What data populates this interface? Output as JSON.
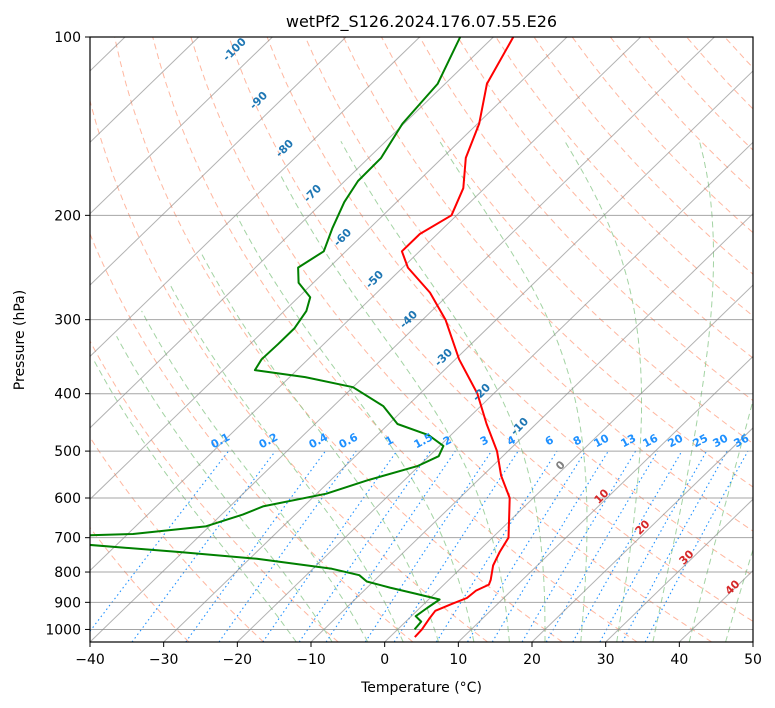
{
  "chart_data": {
    "type": "line",
    "title": "wetPf2_S126.2024.176.07.55.E26",
    "xlabel": "Temperature (°C)",
    "ylabel": "Pressure (hPa)",
    "xlim": [
      -40,
      50
    ],
    "ylim": [
      1050,
      100
    ],
    "y_scale": "log",
    "skew": true,
    "x_ticks": [
      -40,
      -30,
      -20,
      -10,
      0,
      10,
      20,
      30,
      40,
      50
    ],
    "x_tick_labels": [
      "−40",
      "−30",
      "−20",
      "−10",
      "0",
      "10",
      "20",
      "30",
      "40",
      "50"
    ],
    "y_ticks": [
      1000,
      900,
      800,
      700,
      600,
      500,
      400,
      300,
      200,
      100
    ],
    "y_tick_labels": [
      "1000",
      "900",
      "800",
      "700",
      "600",
      "500",
      "400",
      "300",
      "200",
      "100"
    ],
    "grid": true,
    "series": [
      {
        "color": "#ff0000",
        "points": [
          {
            "p": 1030,
            "t": 3.4
          },
          {
            "p": 1000,
            "t": 3.3
          },
          {
            "p": 960,
            "t": 2.8
          },
          {
            "p": 930,
            "t": 2.5
          },
          {
            "p": 905,
            "t": 3.8
          },
          {
            "p": 885,
            "t": 5.0
          },
          {
            "p": 860,
            "t": 5.2
          },
          {
            "p": 840,
            "t": 6.1
          },
          {
            "p": 825,
            "t": 5.7
          },
          {
            "p": 780,
            "t": 4.0
          },
          {
            "p": 740,
            "t": 3.0
          },
          {
            "p": 700,
            "t": 2.2
          },
          {
            "p": 650,
            "t": -0.4
          },
          {
            "p": 600,
            "t": -3.2
          },
          {
            "p": 550,
            "t": -7.5
          },
          {
            "p": 500,
            "t": -11.5
          },
          {
            "p": 450,
            "t": -16.7
          },
          {
            "p": 400,
            "t": -22.2
          },
          {
            "p": 350,
            "t": -29.5
          },
          {
            "p": 300,
            "t": -36.9
          },
          {
            "p": 270,
            "t": -42.8
          },
          {
            "p": 245,
            "t": -49.3
          },
          {
            "p": 230,
            "t": -52.4
          },
          {
            "p": 215,
            "t": -52.4
          },
          {
            "p": 200,
            "t": -50.7
          },
          {
            "p": 180,
            "t": -52.9
          },
          {
            "p": 160,
            "t": -56.8
          },
          {
            "p": 140,
            "t": -59.8
          },
          {
            "p": 120,
            "t": -64.3
          },
          {
            "p": 100,
            "t": -67.3
          }
        ]
      },
      {
        "color": "#008000",
        "points": [
          {
            "p": 1000,
            "t": 2.3
          },
          {
            "p": 970,
            "t": 2.1
          },
          {
            "p": 950,
            "t": 0.6
          },
          {
            "p": 920,
            "t": 1.0
          },
          {
            "p": 890,
            "t": 1.5
          },
          {
            "p": 870,
            "t": -2.6
          },
          {
            "p": 850,
            "t": -6.9
          },
          {
            "p": 830,
            "t": -10.9
          },
          {
            "p": 810,
            "t": -12.8
          },
          {
            "p": 790,
            "t": -17.4
          },
          {
            "p": 760,
            "t": -29.0
          },
          {
            "p": 740,
            "t": -40.5
          },
          {
            "p": 715,
            "t": -57.0
          },
          {
            "p": 700,
            "t": -66.1
          },
          {
            "p": 690,
            "t": -49.3
          },
          {
            "p": 670,
            "t": -40.5
          },
          {
            "p": 640,
            "t": -37.1
          },
          {
            "p": 620,
            "t": -35.5
          },
          {
            "p": 590,
            "t": -28.7
          },
          {
            "p": 560,
            "t": -25.0
          },
          {
            "p": 530,
            "t": -20.2
          },
          {
            "p": 510,
            "t": -18.7
          },
          {
            "p": 490,
            "t": -19.5
          },
          {
            "p": 470,
            "t": -23.0
          },
          {
            "p": 450,
            "t": -28.8
          },
          {
            "p": 420,
            "t": -33.2
          },
          {
            "p": 390,
            "t": -40.0
          },
          {
            "p": 375,
            "t": -47.9
          },
          {
            "p": 365,
            "t": -55.7
          },
          {
            "p": 350,
            "t": -56.3
          },
          {
            "p": 330,
            "t": -56.2
          },
          {
            "p": 310,
            "t": -56.2
          },
          {
            "p": 290,
            "t": -57.0
          },
          {
            "p": 275,
            "t": -58.4
          },
          {
            "p": 260,
            "t": -62.0
          },
          {
            "p": 245,
            "t": -64.2
          },
          {
            "p": 230,
            "t": -63.0
          },
          {
            "p": 210,
            "t": -65.1
          },
          {
            "p": 190,
            "t": -67.1
          },
          {
            "p": 175,
            "t": -68.2
          },
          {
            "p": 160,
            "t": -68.3
          },
          {
            "p": 140,
            "t": -70.2
          },
          {
            "p": 120,
            "t": -71.0
          },
          {
            "p": 100,
            "t": -74.5
          }
        ]
      }
    ],
    "annotations": {
      "isotherm_labels": [
        "-100",
        "-90",
        "-80",
        "-70",
        "-60",
        "-50",
        "-40",
        "-30",
        "-20",
        "-10"
      ],
      "mixing_ratio_labels": [
        "0.1",
        "0.2",
        "0.4",
        "0.6",
        "1",
        "1.5",
        "2",
        "3",
        "4",
        "6",
        "8",
        "10",
        "13",
        "16",
        "20",
        "25",
        "30",
        "36"
      ],
      "zero_label": "0",
      "adiabat_labels": [
        "10",
        "20",
        "30",
        "40"
      ]
    }
  },
  "colors": {
    "temperature": "#ff0000",
    "dewpoint": "#008000",
    "isotherm_label": "#1f77b4",
    "mixing_ratio": "#1e90ff",
    "dry_adiabat": "#ff9f80",
    "moist_adiabat": "#8cc88c",
    "adiabat_label": "#d62728",
    "isotherm": "#888888"
  }
}
